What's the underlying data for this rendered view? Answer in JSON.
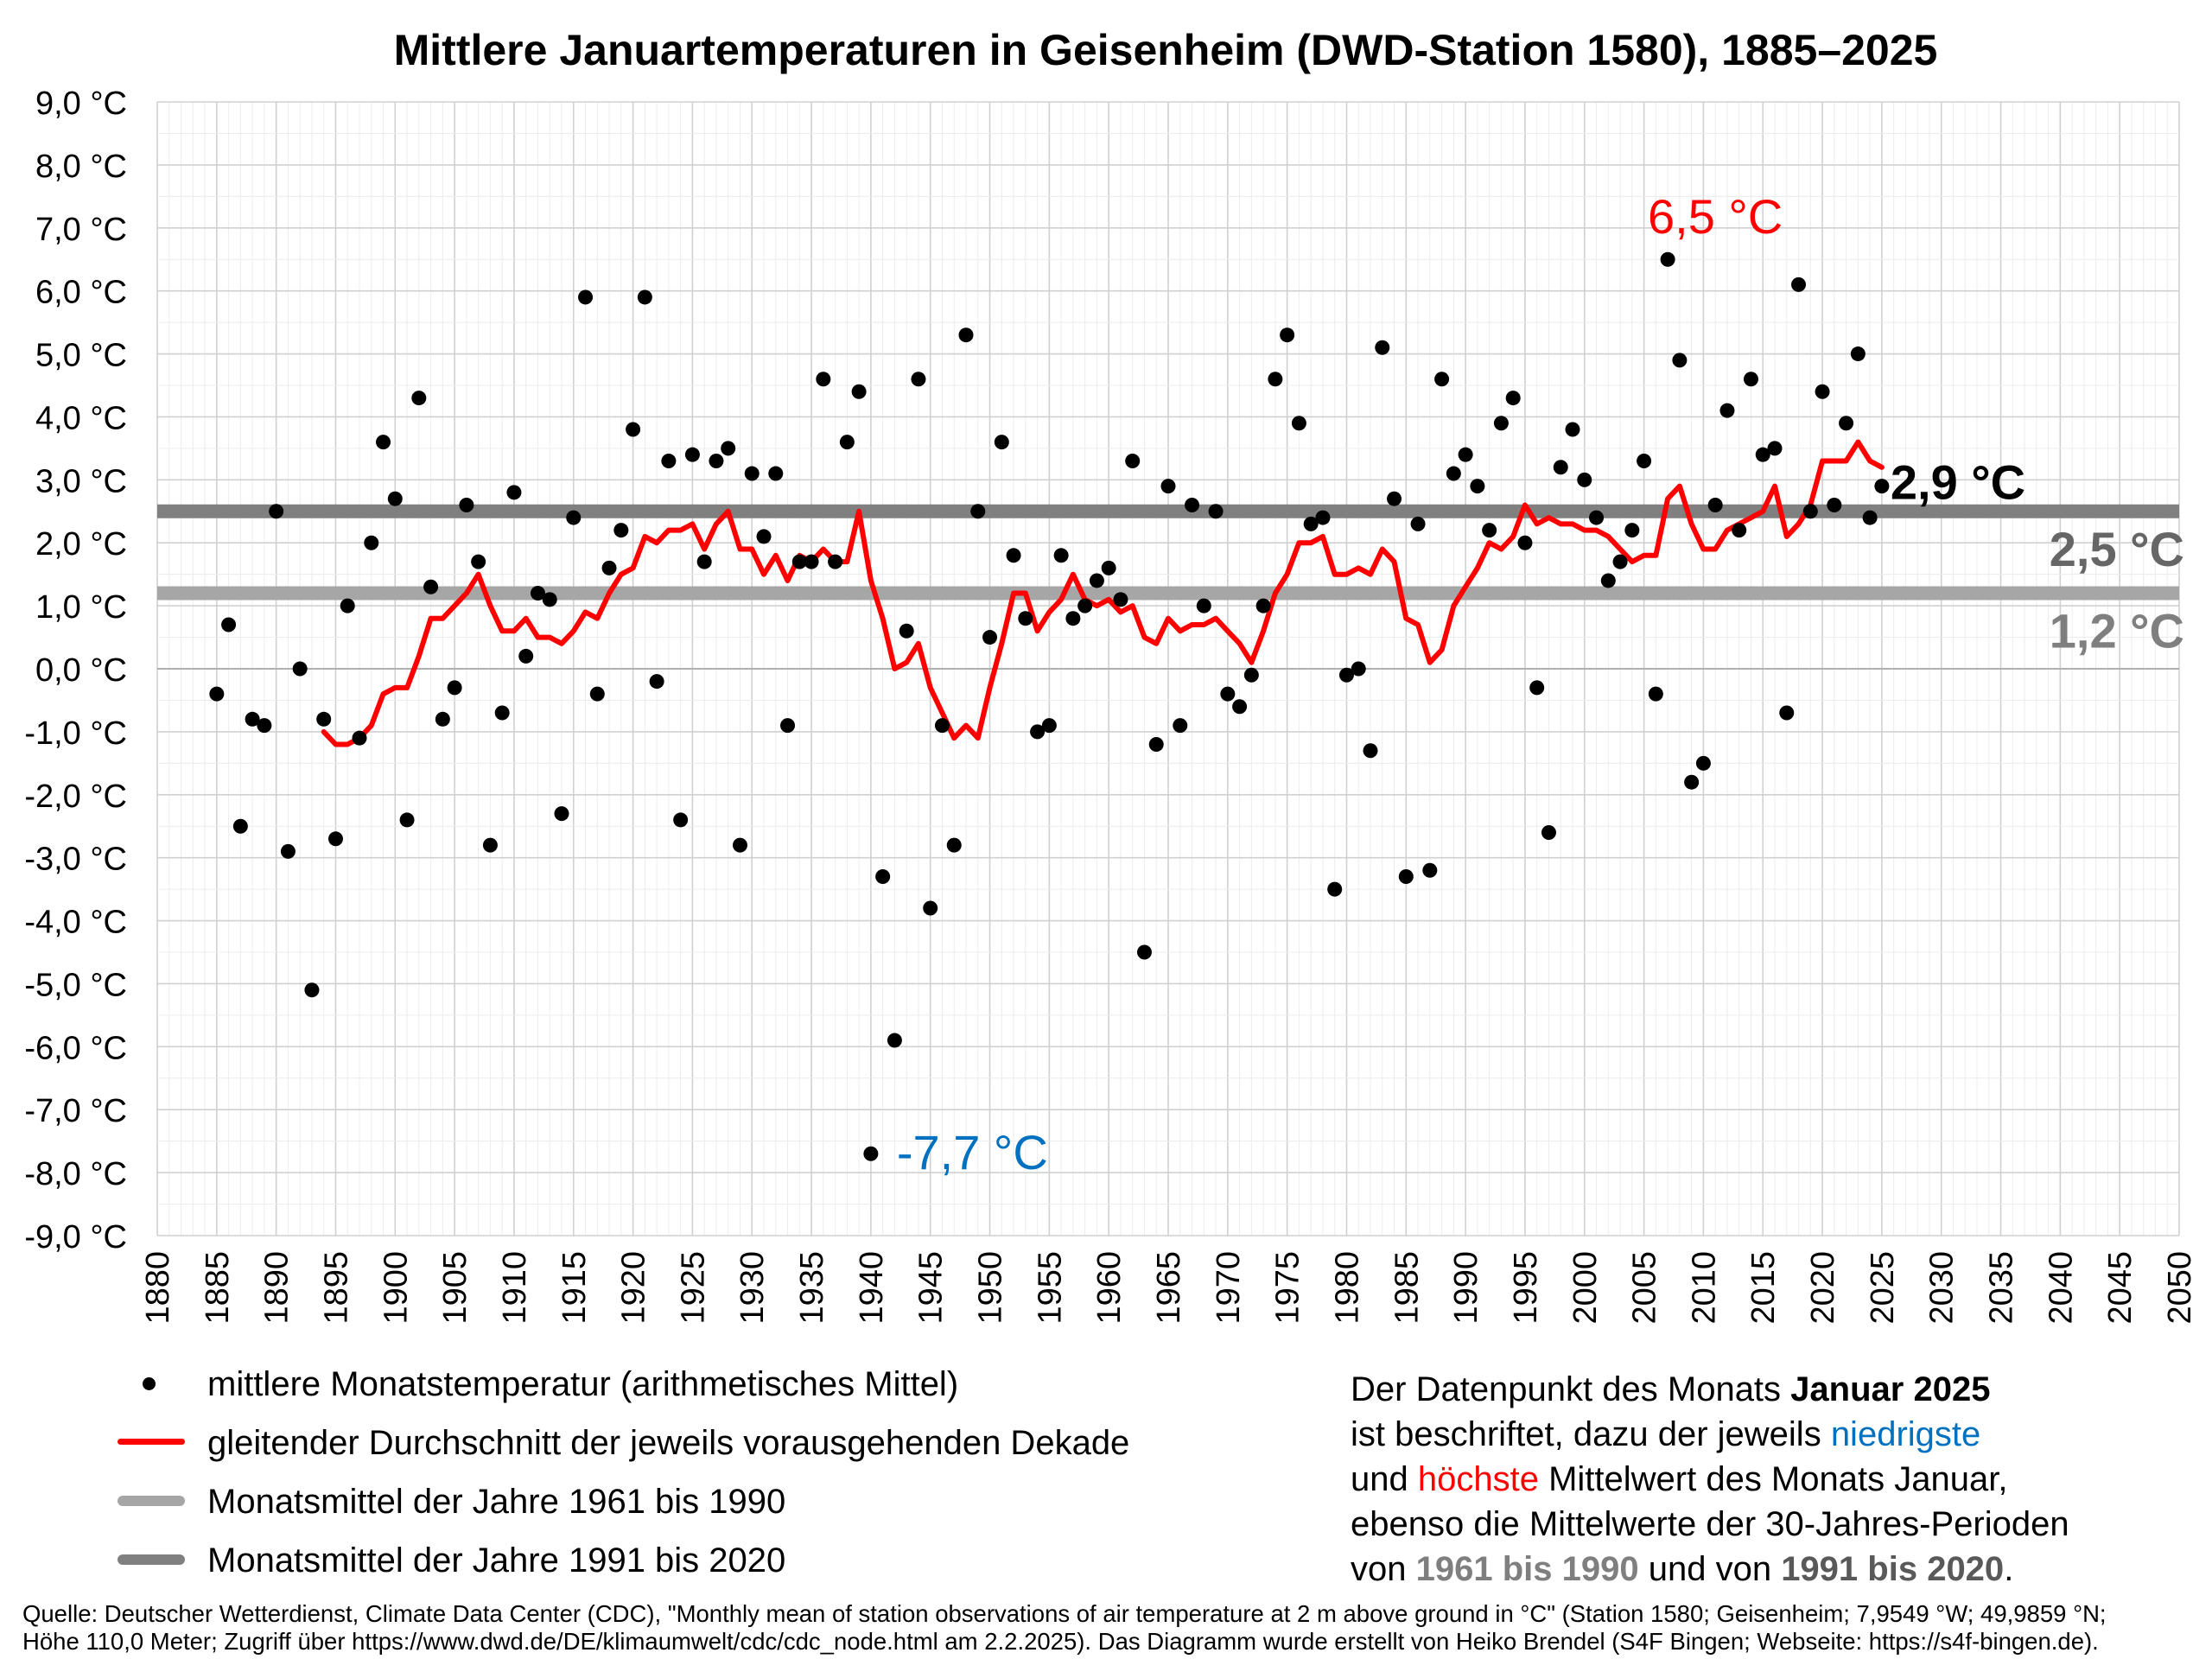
{
  "chart_data": {
    "type": "scatter",
    "title": "Mittlere Januartemperaturen in Geisenheim (DWD-Station 1580), 1885–2025",
    "xlim": [
      1880,
      2050
    ],
    "ylim": [
      -9,
      9
    ],
    "grid": true,
    "y_tick_labels": [
      "9,0 °C",
      "8,0 °C",
      "7,0 °C",
      "6,0 °C",
      "5,0 °C",
      "4,0 °C",
      "3,0 °C",
      "2,0 °C",
      "1,0 °C",
      "0,0 °C",
      "-1,0 °C",
      "-2,0 °C",
      "-3,0 °C",
      "-4,0 °C",
      "-5,0 °C",
      "-6,0 °C",
      "-7,0 °C",
      "-8,0 °C",
      "-9,0 °C"
    ],
    "x_tick_labels": [
      "1880",
      "1885",
      "1890",
      "1895",
      "1900",
      "1905",
      "1910",
      "1915",
      "1920",
      "1925",
      "1930",
      "1935",
      "1940",
      "1945",
      "1950",
      "1955",
      "1960",
      "1965",
      "1970",
      "1975",
      "1980",
      "1985",
      "1990",
      "1995",
      "2000",
      "2005",
      "2010",
      "2015",
      "2020",
      "2025",
      "2030",
      "2035",
      "2040",
      "2045",
      "2050"
    ],
    "series": [
      {
        "name": "mittlere Monatstemperatur (arithmetisches Mittel)",
        "color": "#000000",
        "points": [
          [
            1885,
            -0.4
          ],
          [
            1886,
            0.7
          ],
          [
            1887,
            -2.5
          ],
          [
            1888,
            -0.8
          ],
          [
            1889,
            -0.9
          ],
          [
            1890,
            2.5
          ],
          [
            1891,
            -2.9
          ],
          [
            1892,
            0.0
          ],
          [
            1893,
            -5.1
          ],
          [
            1894,
            -0.8
          ],
          [
            1895,
            -2.7
          ],
          [
            1896,
            1.0
          ],
          [
            1897,
            -1.1
          ],
          [
            1898,
            2.0
          ],
          [
            1899,
            3.6
          ],
          [
            1900,
            2.7
          ],
          [
            1901,
            -2.4
          ],
          [
            1902,
            4.3
          ],
          [
            1903,
            1.3
          ],
          [
            1904,
            -0.8
          ],
          [
            1905,
            -0.3
          ],
          [
            1906,
            2.6
          ],
          [
            1907,
            1.7
          ],
          [
            1908,
            -2.8
          ],
          [
            1909,
            -0.7
          ],
          [
            1910,
            2.8
          ],
          [
            1911,
            0.2
          ],
          [
            1912,
            1.2
          ],
          [
            1913,
            1.1
          ],
          [
            1914,
            -2.3
          ],
          [
            1915,
            2.4
          ],
          [
            1916,
            5.9
          ],
          [
            1917,
            -0.4
          ],
          [
            1918,
            1.6
          ],
          [
            1919,
            2.2
          ],
          [
            1920,
            3.8
          ],
          [
            1921,
            5.9
          ],
          [
            1922,
            -0.2
          ],
          [
            1923,
            3.3
          ],
          [
            1924,
            -2.4
          ],
          [
            1925,
            3.4
          ],
          [
            1926,
            1.7
          ],
          [
            1927,
            3.3
          ],
          [
            1928,
            3.5
          ],
          [
            1929,
            -2.8
          ],
          [
            1930,
            3.1
          ],
          [
            1931,
            2.1
          ],
          [
            1932,
            3.1
          ],
          [
            1933,
            -0.9
          ],
          [
            1934,
            1.7
          ],
          [
            1935,
            1.7
          ],
          [
            1936,
            4.6
          ],
          [
            1937,
            1.7
          ],
          [
            1938,
            3.6
          ],
          [
            1939,
            4.4
          ],
          [
            1940,
            -7.7
          ],
          [
            1941,
            -3.3
          ],
          [
            1942,
            -5.9
          ],
          [
            1943,
            0.6
          ],
          [
            1944,
            4.6
          ],
          [
            1945,
            -3.8
          ],
          [
            1946,
            -0.9
          ],
          [
            1947,
            -2.8
          ],
          [
            1948,
            5.3
          ],
          [
            1949,
            2.5
          ],
          [
            1950,
            0.5
          ],
          [
            1951,
            3.6
          ],
          [
            1952,
            1.8
          ],
          [
            1953,
            0.8
          ],
          [
            1954,
            -1.0
          ],
          [
            1955,
            -0.9
          ],
          [
            1956,
            1.8
          ],
          [
            1957,
            0.8
          ],
          [
            1958,
            1.0
          ],
          [
            1959,
            1.4
          ],
          [
            1960,
            1.6
          ],
          [
            1961,
            1.1
          ],
          [
            1962,
            3.3
          ],
          [
            1963,
            -4.5
          ],
          [
            1964,
            -1.2
          ],
          [
            1965,
            2.9
          ],
          [
            1966,
            -0.9
          ],
          [
            1967,
            2.6
          ],
          [
            1968,
            1.0
          ],
          [
            1969,
            2.5
          ],
          [
            1970,
            -0.4
          ],
          [
            1971,
            -0.6
          ],
          [
            1972,
            -0.1
          ],
          [
            1973,
            1.0
          ],
          [
            1974,
            4.6
          ],
          [
            1975,
            5.3
          ],
          [
            1976,
            3.9
          ],
          [
            1977,
            2.3
          ],
          [
            1978,
            2.4
          ],
          [
            1979,
            -3.5
          ],
          [
            1980,
            -0.1
          ],
          [
            1981,
            0.0
          ],
          [
            1982,
            -1.3
          ],
          [
            1983,
            5.1
          ],
          [
            1984,
            2.7
          ],
          [
            1985,
            -3.3
          ],
          [
            1986,
            2.3
          ],
          [
            1987,
            -3.2
          ],
          [
            1988,
            4.6
          ],
          [
            1989,
            3.1
          ],
          [
            1990,
            3.4
          ],
          [
            1991,
            2.9
          ],
          [
            1992,
            2.2
          ],
          [
            1993,
            3.9
          ],
          [
            1994,
            4.3
          ],
          [
            1995,
            2.0
          ],
          [
            1996,
            -0.3
          ],
          [
            1997,
            -2.6
          ],
          [
            1998,
            3.2
          ],
          [
            1999,
            3.8
          ],
          [
            2000,
            3.0
          ],
          [
            2001,
            2.4
          ],
          [
            2002,
            1.4
          ],
          [
            2003,
            1.7
          ],
          [
            2004,
            2.2
          ],
          [
            2005,
            3.3
          ],
          [
            2006,
            -0.4
          ],
          [
            2007,
            6.5
          ],
          [
            2008,
            4.9
          ],
          [
            2009,
            -1.8
          ],
          [
            2010,
            -1.5
          ],
          [
            2011,
            2.6
          ],
          [
            2012,
            4.1
          ],
          [
            2013,
            2.2
          ],
          [
            2014,
            4.6
          ],
          [
            2015,
            3.4
          ],
          [
            2016,
            3.5
          ],
          [
            2017,
            -0.7
          ],
          [
            2018,
            6.1
          ],
          [
            2019,
            2.5
          ],
          [
            2020,
            4.4
          ],
          [
            2021,
            2.6
          ],
          [
            2022,
            3.9
          ],
          [
            2023,
            5.0
          ],
          [
            2024,
            2.4
          ],
          [
            2025,
            2.9
          ]
        ]
      },
      {
        "name": "gleitender Durchschnitt der jeweils vorausgehenden Dekade",
        "color": "#ff0000",
        "points": [
          [
            1894,
            -1.0
          ],
          [
            1895,
            -1.2
          ],
          [
            1896,
            -1.2
          ],
          [
            1897,
            -1.1
          ],
          [
            1898,
            -0.9
          ],
          [
            1899,
            -0.4
          ],
          [
            1900,
            -0.3
          ],
          [
            1901,
            -0.3
          ],
          [
            1902,
            0.2
          ],
          [
            1903,
            0.8
          ],
          [
            1904,
            0.8
          ],
          [
            1905,
            1.0
          ],
          [
            1906,
            1.2
          ],
          [
            1907,
            1.5
          ],
          [
            1908,
            1.0
          ],
          [
            1909,
            0.6
          ],
          [
            1910,
            0.6
          ],
          [
            1911,
            0.8
          ],
          [
            1912,
            0.5
          ],
          [
            1913,
            0.5
          ],
          [
            1914,
            0.4
          ],
          [
            1915,
            0.6
          ],
          [
            1916,
            0.9
          ],
          [
            1917,
            0.8
          ],
          [
            1918,
            1.2
          ],
          [
            1919,
            1.5
          ],
          [
            1920,
            1.6
          ],
          [
            1921,
            2.1
          ],
          [
            1922,
            2.0
          ],
          [
            1923,
            2.2
          ],
          [
            1924,
            2.2
          ],
          [
            1925,
            2.3
          ],
          [
            1926,
            1.9
          ],
          [
            1927,
            2.3
          ],
          [
            1928,
            2.5
          ],
          [
            1929,
            1.9
          ],
          [
            1930,
            1.9
          ],
          [
            1931,
            1.5
          ],
          [
            1932,
            1.8
          ],
          [
            1933,
            1.4
          ],
          [
            1934,
            1.8
          ],
          [
            1935,
            1.7
          ],
          [
            1936,
            1.9
          ],
          [
            1937,
            1.7
          ],
          [
            1938,
            1.7
          ],
          [
            1939,
            2.5
          ],
          [
            1940,
            1.4
          ],
          [
            1941,
            0.8
          ],
          [
            1942,
            0.0
          ],
          [
            1943,
            0.1
          ],
          [
            1944,
            0.4
          ],
          [
            1945,
            -0.3
          ],
          [
            1946,
            -0.7
          ],
          [
            1947,
            -1.1
          ],
          [
            1948,
            -0.9
          ],
          [
            1949,
            -1.1
          ],
          [
            1950,
            -0.3
          ],
          [
            1951,
            0.4
          ],
          [
            1952,
            1.2
          ],
          [
            1953,
            1.2
          ],
          [
            1954,
            0.6
          ],
          [
            1955,
            0.9
          ],
          [
            1956,
            1.1
          ],
          [
            1957,
            1.5
          ],
          [
            1958,
            1.1
          ],
          [
            1959,
            1.0
          ],
          [
            1960,
            1.1
          ],
          [
            1961,
            0.9
          ],
          [
            1962,
            1.0
          ],
          [
            1963,
            0.5
          ],
          [
            1964,
            0.4
          ],
          [
            1965,
            0.8
          ],
          [
            1966,
            0.6
          ],
          [
            1967,
            0.7
          ],
          [
            1968,
            0.7
          ],
          [
            1969,
            0.8
          ],
          [
            1970,
            0.6
          ],
          [
            1971,
            0.4
          ],
          [
            1972,
            0.1
          ],
          [
            1973,
            0.6
          ],
          [
            1974,
            1.2
          ],
          [
            1975,
            1.5
          ],
          [
            1976,
            2.0
          ],
          [
            1977,
            2.0
          ],
          [
            1978,
            2.1
          ],
          [
            1979,
            1.5
          ],
          [
            1980,
            1.5
          ],
          [
            1981,
            1.6
          ],
          [
            1982,
            1.5
          ],
          [
            1983,
            1.9
          ],
          [
            1984,
            1.7
          ],
          [
            1985,
            0.8
          ],
          [
            1986,
            0.7
          ],
          [
            1987,
            0.1
          ],
          [
            1988,
            0.3
          ],
          [
            1989,
            1.0
          ],
          [
            1990,
            1.3
          ],
          [
            1991,
            1.6
          ],
          [
            1992,
            2.0
          ],
          [
            1993,
            1.9
          ],
          [
            1994,
            2.1
          ],
          [
            1995,
            2.6
          ],
          [
            1996,
            2.3
          ],
          [
            1997,
            2.4
          ],
          [
            1998,
            2.3
          ],
          [
            1999,
            2.3
          ],
          [
            2000,
            2.2
          ],
          [
            2001,
            2.2
          ],
          [
            2002,
            2.1
          ],
          [
            2003,
            1.9
          ],
          [
            2004,
            1.7
          ],
          [
            2005,
            1.8
          ],
          [
            2006,
            1.8
          ],
          [
            2007,
            2.7
          ],
          [
            2008,
            2.9
          ],
          [
            2009,
            2.3
          ],
          [
            2010,
            1.9
          ],
          [
            2011,
            1.9
          ],
          [
            2012,
            2.2
          ],
          [
            2013,
            2.3
          ],
          [
            2014,
            2.4
          ],
          [
            2015,
            2.5
          ],
          [
            2016,
            2.9
          ],
          [
            2017,
            2.1
          ],
          [
            2018,
            2.3
          ],
          [
            2019,
            2.6
          ],
          [
            2020,
            3.3
          ],
          [
            2021,
            3.3
          ],
          [
            2022,
            3.3
          ],
          [
            2023,
            3.6
          ],
          [
            2024,
            3.3
          ],
          [
            2025,
            3.2
          ]
        ]
      }
    ],
    "reference_lines": [
      {
        "name": "Monatsmittel der Jahre 1961 bis 1990",
        "value": 1.2,
        "label": "1,2 °C",
        "color": "#a6a6a6"
      },
      {
        "name": "Monatsmittel der Jahre 1991 bis 2020",
        "value": 2.5,
        "label": "2,5 °C",
        "color": "#808080"
      }
    ],
    "annotations": [
      {
        "text": "6,5 °C",
        "x": 2007,
        "y": 6.5,
        "color": "#ff0000"
      },
      {
        "text": "-7,7 °C",
        "x": 1940,
        "y": -7.7,
        "color": "#0070c0"
      },
      {
        "text": "2,9 °C",
        "x": 2025,
        "y": 2.9,
        "color": "#000000"
      }
    ]
  },
  "legend": {
    "dot_label": "mittlere Monatstemperatur (arithmetisches Mittel)",
    "line_label": "gleitender Durchschnitt der jeweils vorausgehenden Dekade",
    "ref1_label": "Monatsmittel der Jahre 1961 bis 1990",
    "ref2_label": "Monatsmittel der Jahre 1991 bis 2020"
  },
  "note": {
    "l1a": "Der Datenpunkt des Monats ",
    "l1b": "Januar 2025",
    "l2a": "ist beschriftet, dazu der jeweils ",
    "l2b": "niedrigste",
    "l3a": "und ",
    "l3b": "höchste",
    "l3c": " Mittelwert des Monats Januar,",
    "l4": "ebenso die Mittelwerte der 30-Jahres-Perioden",
    "l5a": "von ",
    "l5b": "1961 bis 1990",
    "l5c": " und von ",
    "l5d": "1991 bis 2020",
    "l5e": "."
  },
  "source": {
    "line1": "Quelle: Deutscher Wetterdienst, Climate Data Center (CDC), \"Monthly mean of station observations of air temperature at 2 m above ground in °C\" (Station 1580; Geisenheim; 7,9549 °W; 49,9859 °N;",
    "line2": "Höhe 110,0 Meter; Zugriff über https://www.dwd.de/DE/klimaumwelt/cdc/cdc_node.html am 2.2.2025). Das Diagramm wurde erstellt von Heiko Brendel (S4F Bingen; Webseite: https://s4f-bingen.de)."
  }
}
